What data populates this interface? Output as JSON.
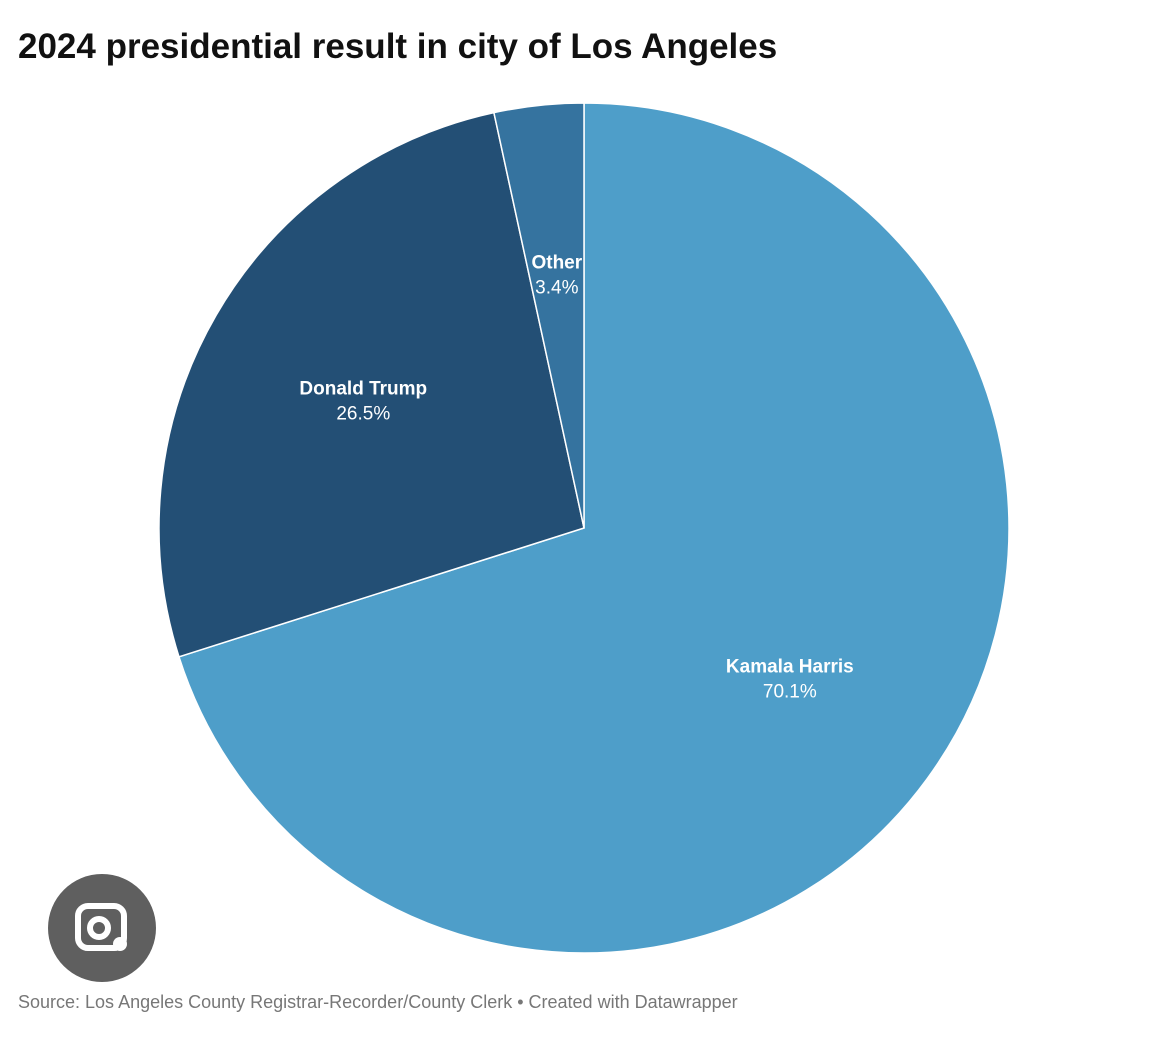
{
  "chart_data": {
    "type": "pie",
    "title": "2024 presidential result in city of Los Angeles",
    "categories": [
      "Kamala Harris",
      "Donald Trump",
      "Other"
    ],
    "values": [
      70.1,
      26.5,
      3.4
    ],
    "value_labels": [
      "70.1%",
      "26.5%",
      "3.4%"
    ],
    "colors": [
      "#4e9ec9",
      "#234f75",
      "#35739f"
    ],
    "source": "Source: Los Angeles County Registrar-Recorder/County Clerk • Created with Datawrapper"
  }
}
